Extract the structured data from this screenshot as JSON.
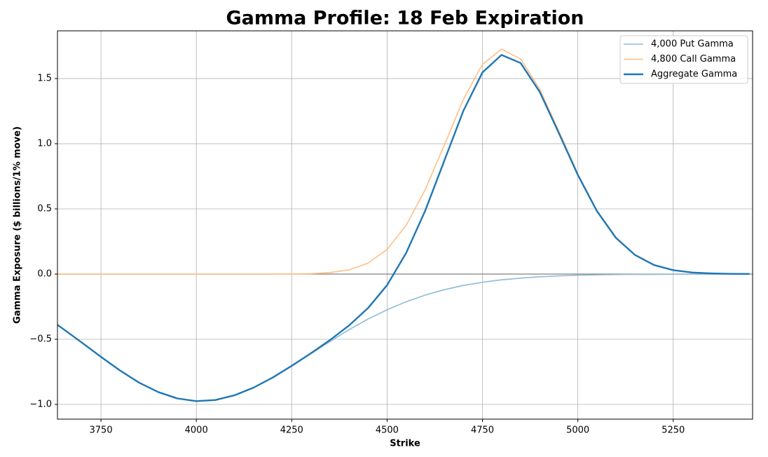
{
  "chart_data": {
    "type": "line",
    "title": "Gamma Profile: 18 Feb Expiration",
    "x_label": "Strike",
    "y_label": "Gamma Exposure ($ billions/1% move)",
    "x": [
      3636,
      3650,
      3700,
      3750,
      3800,
      3850,
      3900,
      3950,
      4000,
      4050,
      4100,
      4150,
      4200,
      4250,
      4300,
      4350,
      4400,
      4450,
      4500,
      4550,
      4600,
      4650,
      4700,
      4750,
      4800,
      4850,
      4900,
      4950,
      5000,
      5050,
      5100,
      5150,
      5200,
      5250,
      5300,
      5350,
      5400,
      5450
    ],
    "series": [
      {
        "name": "4,000 Put Gamma",
        "color": "#8fbbd9",
        "width": 1.6,
        "values": [
          -0.39,
          -0.419,
          -0.526,
          -0.635,
          -0.74,
          -0.833,
          -0.905,
          -0.954,
          -0.975,
          -0.966,
          -0.93,
          -0.871,
          -0.794,
          -0.705,
          -0.611,
          -0.518,
          -0.427,
          -0.345,
          -0.274,
          -0.212,
          -0.161,
          -0.12,
          -0.087,
          -0.063,
          -0.044,
          -0.031,
          -0.021,
          -0.014,
          -0.009,
          -0.006,
          -0.004,
          -0.002,
          -0.002,
          -0.001,
          -0.001,
          0,
          0,
          0
        ]
      },
      {
        "name": "4,800 Call Gamma",
        "color": "#ffbf86",
        "width": 1.6,
        "values": [
          0,
          0,
          0,
          0,
          0,
          0,
          0,
          0,
          0,
          0,
          0,
          0,
          0,
          0.001,
          0.003,
          0.011,
          0.032,
          0.084,
          0.189,
          0.374,
          0.648,
          0.99,
          1.34,
          1.61,
          1.725,
          1.65,
          1.419,
          1.097,
          0.769,
          0.489,
          0.281,
          0.148,
          0.071,
          0.031,
          0.013,
          0.005,
          0.002,
          0.001
        ]
      },
      {
        "name": "Aggregate Gamma",
        "color": "#1f77b4",
        "width": 2.4,
        "values": [
          -0.39,
          -0.419,
          -0.526,
          -0.635,
          -0.74,
          -0.833,
          -0.905,
          -0.954,
          -0.975,
          -0.966,
          -0.93,
          -0.871,
          -0.794,
          -0.704,
          -0.608,
          -0.507,
          -0.395,
          -0.261,
          -0.085,
          0.162,
          0.487,
          0.87,
          1.253,
          1.547,
          1.681,
          1.619,
          1.398,
          1.083,
          0.76,
          0.483,
          0.277,
          0.146,
          0.069,
          0.03,
          0.012,
          0.005,
          0.002,
          0.001
        ]
      }
    ],
    "xlim": [
      3636,
      5458
    ],
    "ylim": [
      -1.113,
      1.866
    ],
    "xticks": [
      3750,
      4000,
      4250,
      4500,
      4750,
      5000,
      5250
    ],
    "yticks": [
      {
        "value": -1,
        "label": "−1.0"
      },
      {
        "value": -0.5,
        "label": "−0.5"
      },
      {
        "value": 0,
        "label": "0.0"
      },
      {
        "value": 0.5,
        "label": "0.5"
      },
      {
        "value": 1,
        "label": "1.0"
      },
      {
        "value": 1.5,
        "label": "1.5"
      }
    ],
    "hline": 0,
    "grid": true,
    "legend": "upper right"
  }
}
